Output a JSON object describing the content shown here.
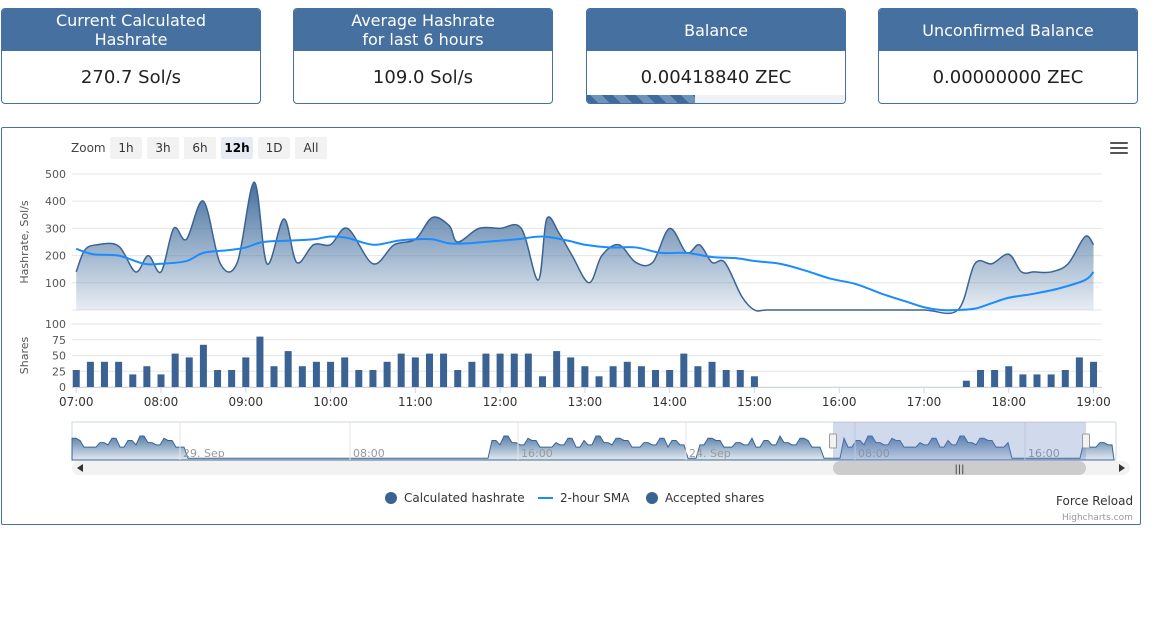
{
  "cards": [
    {
      "title": "Current Calculated\nHashrate",
      "value": "270.7 Sol/s"
    },
    {
      "title": "Average Hashrate\nfor last 6 hours",
      "value": "109.0 Sol/s"
    },
    {
      "title": "Balance",
      "value": "0.00418840 ZEC",
      "progress": 0.42
    },
    {
      "title": "Unconfirmed Balance",
      "value": "0.00000000 ZEC"
    }
  ],
  "zoom": {
    "label": "Zoom",
    "buttons": [
      "1h",
      "3h",
      "6h",
      "12h",
      "1D",
      "All"
    ],
    "active": "12h"
  },
  "colors": {
    "header": "#45709f",
    "area_fill_top": "#45709f",
    "sma_line": "#1a8cff",
    "bars": "#3a6394"
  },
  "legend": [
    "Calculated hashrate",
    "2-hour SMA",
    "Accepted shares"
  ],
  "force_reload": "Force Reload",
  "credits": "Highcharts.com",
  "navigator": {
    "labels": [
      "29. Sep",
      "08:00",
      "16:00",
      "24. Sep",
      "08:00",
      "16:00"
    ]
  },
  "chart_data": {
    "type": "area",
    "x_ticks": [
      "07:00",
      "08:00",
      "09:00",
      "10:00",
      "11:00",
      "12:00",
      "13:00",
      "14:00",
      "15:00",
      "16:00",
      "17:00",
      "18:00",
      "19:00"
    ],
    "hashrate_axis": {
      "label": "Hashrate, Sol/s",
      "ticks": [
        100,
        200,
        300,
        400,
        500
      ],
      "ylim": [
        0,
        500
      ]
    },
    "shares_axis": {
      "label": "Shares",
      "ticks": [
        0,
        25,
        50,
        75,
        100
      ],
      "ylim": [
        0,
        100
      ]
    },
    "series": [
      {
        "name": "Calculated hashrate",
        "x": [
          7.0,
          7.1,
          7.25,
          7.5,
          7.7,
          7.85,
          8.0,
          8.15,
          8.3,
          8.5,
          8.7,
          8.9,
          9.1,
          9.25,
          9.45,
          9.6,
          9.8,
          10.0,
          10.2,
          10.5,
          10.75,
          11.0,
          11.2,
          11.4,
          11.5,
          11.75,
          12.0,
          12.25,
          12.45,
          12.55,
          12.7,
          12.85,
          13.05,
          13.2,
          13.4,
          13.6,
          13.8,
          14.0,
          14.2,
          14.35,
          14.5,
          14.65,
          14.85,
          15.0,
          15.15,
          15.5,
          16.0,
          16.5,
          17.0,
          17.4,
          17.6,
          17.8,
          18.0,
          18.15,
          18.3,
          18.5,
          18.7,
          18.9,
          19.0
        ],
        "y": [
          140,
          220,
          240,
          235,
          140,
          200,
          140,
          300,
          260,
          400,
          170,
          175,
          470,
          170,
          335,
          175,
          240,
          240,
          300,
          170,
          240,
          260,
          340,
          310,
          250,
          300,
          300,
          300,
          110,
          335,
          280,
          200,
          100,
          200,
          240,
          175,
          175,
          300,
          210,
          240,
          175,
          175,
          50,
          0,
          0,
          0,
          0,
          0,
          0,
          0,
          170,
          170,
          205,
          140,
          140,
          140,
          170,
          270,
          240
        ]
      },
      {
        "name": "2-hour SMA",
        "x": [
          7.0,
          7.2,
          7.5,
          7.8,
          8.0,
          8.3,
          8.5,
          8.8,
          9.0,
          9.2,
          9.5,
          9.8,
          10.0,
          10.2,
          10.5,
          10.8,
          11.0,
          11.2,
          11.4,
          11.6,
          11.8,
          12.0,
          12.2,
          12.5,
          12.8,
          13.0,
          13.3,
          13.6,
          13.9,
          14.2,
          14.5,
          14.8,
          15.0,
          15.3,
          15.6,
          15.9,
          16.2,
          16.5,
          16.8,
          17.0,
          17.2,
          17.4,
          17.6,
          17.8,
          18.0,
          18.3,
          18.6,
          18.9,
          19.0
        ],
        "y": [
          225,
          205,
          200,
          170,
          170,
          180,
          210,
          220,
          230,
          250,
          255,
          260,
          270,
          265,
          240,
          255,
          260,
          260,
          245,
          245,
          250,
          255,
          260,
          270,
          255,
          240,
          230,
          230,
          210,
          210,
          195,
          190,
          180,
          170,
          145,
          115,
          95,
          60,
          30,
          10,
          0,
          0,
          5,
          25,
          45,
          60,
          80,
          110,
          140
        ]
      },
      {
        "name": "Accepted shares",
        "x": [
          7.0,
          7.167,
          7.333,
          7.5,
          7.667,
          7.833,
          8.0,
          8.167,
          8.333,
          8.5,
          8.667,
          8.833,
          9.0,
          9.167,
          9.333,
          9.5,
          9.667,
          9.833,
          10.0,
          10.167,
          10.333,
          10.5,
          10.667,
          10.833,
          11.0,
          11.167,
          11.333,
          11.5,
          11.667,
          11.833,
          12.0,
          12.167,
          12.333,
          12.5,
          12.667,
          12.833,
          13.0,
          13.167,
          13.333,
          13.5,
          13.667,
          13.833,
          14.0,
          14.167,
          14.333,
          14.5,
          14.667,
          14.833,
          15.0,
          17.5,
          17.667,
          17.833,
          18.0,
          18.167,
          18.333,
          18.5,
          18.667,
          18.833,
          19.0
        ],
        "y": [
          27,
          40,
          40,
          40,
          20,
          33,
          20,
          53,
          47,
          67,
          27,
          27,
          47,
          80,
          33,
          57,
          33,
          40,
          40,
          47,
          27,
          27,
          40,
          53,
          47,
          53,
          53,
          27,
          40,
          53,
          53,
          53,
          53,
          17,
          57,
          47,
          33,
          17,
          33,
          40,
          33,
          27,
          27,
          53,
          33,
          40,
          27,
          27,
          17,
          10,
          27,
          27,
          33,
          20,
          20,
          20,
          27,
          47,
          40
        ]
      }
    ]
  }
}
